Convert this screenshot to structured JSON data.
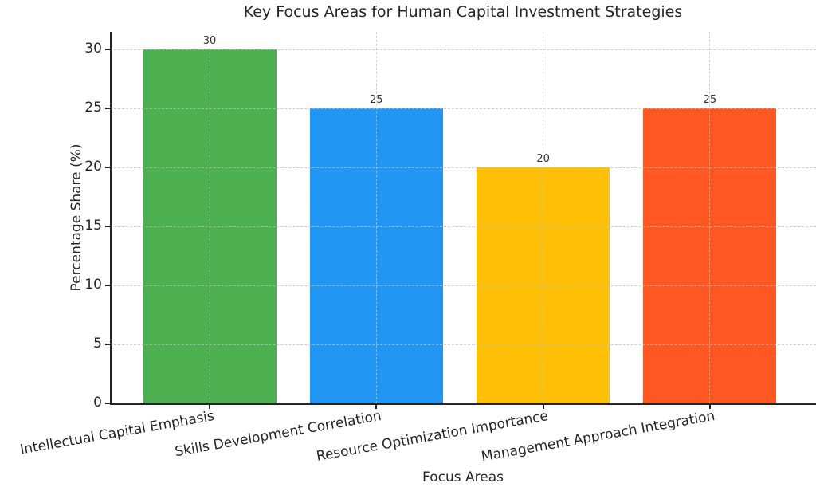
{
  "chart_data": {
    "type": "bar",
    "title": "Key Focus Areas for Human Capital Investment Strategies",
    "xlabel": "Focus Areas",
    "ylabel": "Percentage Share (%)",
    "categories": [
      "Intellectual Capital Emphasis",
      "Skills Development Correlation",
      "Resource Optimization Importance",
      "Management Approach Integration"
    ],
    "values": [
      30,
      25,
      20,
      25
    ],
    "bar_colors": [
      "#4CAF50",
      "#2196F3",
      "#FFC107",
      "#FF5722"
    ],
    "yticks": [
      0,
      5,
      10,
      15,
      20,
      25,
      30
    ],
    "ylim": [
      0,
      31.5
    ],
    "grid": "dashed-both-axes",
    "legend": "none",
    "grid_color": "#bebebe",
    "axis_color": "#262626"
  }
}
